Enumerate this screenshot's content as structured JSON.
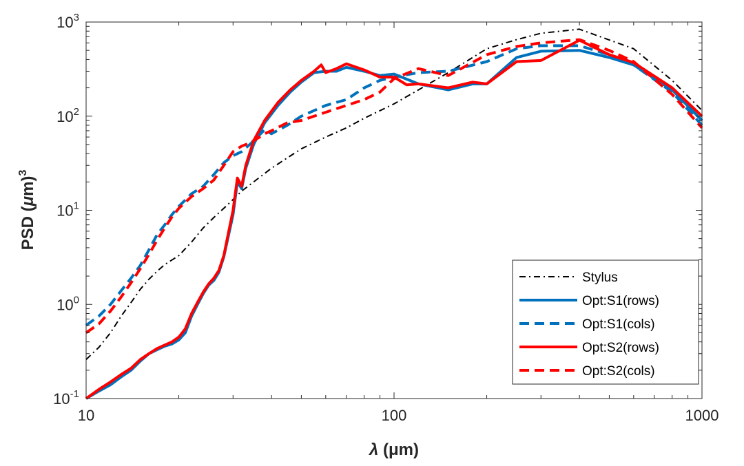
{
  "chart_data": {
    "type": "line",
    "xscale": "log",
    "yscale": "log",
    "xlim": [
      10,
      1000
    ],
    "ylim": [
      0.1,
      1000
    ],
    "xlabel": "λ (μm)",
    "xlabel_symbol": "λ",
    "xlabel_unit": " (μm)",
    "ylabel": "PSD (μm)³",
    "ylabel_text": "PSD (",
    "ylabel_symbol": "μ",
    "ylabel_unit": "m)",
    "ylabel_sup": "3",
    "xticks": [
      {
        "value": 10,
        "label": "10"
      },
      {
        "value": 100,
        "label": "100"
      },
      {
        "value": 1000,
        "label": "1000"
      }
    ],
    "yticks": [
      {
        "value": 0.1,
        "base": "10",
        "exp": "-1"
      },
      {
        "value": 1,
        "base": "10",
        "exp": "0"
      },
      {
        "value": 10,
        "base": "10",
        "exp": "1"
      },
      {
        "value": 100,
        "base": "10",
        "exp": "2"
      },
      {
        "value": 1000,
        "base": "10",
        "exp": "3"
      }
    ],
    "legend_position": "bottom-right",
    "series": [
      {
        "name": "Stylus",
        "color": "#000000",
        "style": "dashdot",
        "points": [
          [
            10,
            0.26
          ],
          [
            11,
            0.35
          ],
          [
            12,
            0.5
          ],
          [
            13,
            0.75
          ],
          [
            14,
            1.05
          ],
          [
            15,
            1.45
          ],
          [
            16,
            1.85
          ],
          [
            17,
            2.25
          ],
          [
            18,
            2.65
          ],
          [
            20,
            3.3
          ],
          [
            22,
            4.6
          ],
          [
            24,
            6.5
          ],
          [
            26,
            8.4
          ],
          [
            28,
            10.5
          ],
          [
            30,
            13
          ],
          [
            32,
            16
          ],
          [
            35,
            20
          ],
          [
            40,
            28
          ],
          [
            45,
            36
          ],
          [
            50,
            45
          ],
          [
            60,
            60
          ],
          [
            70,
            75
          ],
          [
            80,
            95
          ],
          [
            100,
            135
          ],
          [
            120,
            190
          ],
          [
            150,
            290
          ],
          [
            200,
            520
          ],
          [
            250,
            650
          ],
          [
            300,
            760
          ],
          [
            400,
            840
          ],
          [
            600,
            520
          ],
          [
            800,
            240
          ],
          [
            1000,
            115
          ]
        ]
      },
      {
        "name": "Opt:S1(rows)",
        "color": "#0072BD",
        "style": "solid",
        "points": [
          [
            10,
            0.1
          ],
          [
            11,
            0.12
          ],
          [
            12,
            0.14
          ],
          [
            13,
            0.17
          ],
          [
            14,
            0.2
          ],
          [
            15,
            0.25
          ],
          [
            16,
            0.3
          ],
          [
            17,
            0.33
          ],
          [
            18,
            0.36
          ],
          [
            19,
            0.38
          ],
          [
            20,
            0.42
          ],
          [
            21,
            0.5
          ],
          [
            22,
            0.75
          ],
          [
            23,
            1.0
          ],
          [
            24,
            1.3
          ],
          [
            25,
            1.6
          ],
          [
            26,
            1.8
          ],
          [
            27,
            2.2
          ],
          [
            28,
            3.2
          ],
          [
            30,
            9
          ],
          [
            31,
            20
          ],
          [
            32,
            17
          ],
          [
            33,
            28
          ],
          [
            35,
            50
          ],
          [
            38,
            85
          ],
          [
            42,
            130
          ],
          [
            46,
            180
          ],
          [
            50,
            230
          ],
          [
            55,
            290
          ],
          [
            60,
            300
          ],
          [
            65,
            300
          ],
          [
            70,
            330
          ],
          [
            80,
            300
          ],
          [
            90,
            270
          ],
          [
            100,
            280
          ],
          [
            120,
            220
          ],
          [
            150,
            190
          ],
          [
            180,
            220
          ],
          [
            200,
            220
          ],
          [
            250,
            420
          ],
          [
            300,
            490
          ],
          [
            400,
            500
          ],
          [
            500,
            420
          ],
          [
            600,
            350
          ],
          [
            800,
            190
          ],
          [
            1000,
            90
          ]
        ]
      },
      {
        "name": "Opt:S1(cols)",
        "color": "#0072BD",
        "style": "dashed",
        "points": [
          [
            10,
            0.6
          ],
          [
            11,
            0.75
          ],
          [
            12,
            1.0
          ],
          [
            13,
            1.4
          ],
          [
            14,
            1.9
          ],
          [
            15,
            2.6
          ],
          [
            16,
            3.8
          ],
          [
            17,
            5.5
          ],
          [
            18,
            7.0
          ],
          [
            19,
            9.0
          ],
          [
            20,
            11
          ],
          [
            22,
            15
          ],
          [
            24,
            18
          ],
          [
            26,
            24
          ],
          [
            28,
            32
          ],
          [
            30,
            38
          ],
          [
            32,
            42
          ],
          [
            34,
            50
          ],
          [
            36,
            60
          ],
          [
            38,
            72
          ],
          [
            40,
            65
          ],
          [
            45,
            80
          ],
          [
            50,
            100
          ],
          [
            60,
            130
          ],
          [
            70,
            150
          ],
          [
            80,
            200
          ],
          [
            90,
            240
          ],
          [
            100,
            260
          ],
          [
            120,
            290
          ],
          [
            150,
            300
          ],
          [
            200,
            380
          ],
          [
            250,
            520
          ],
          [
            300,
            560
          ],
          [
            400,
            560
          ],
          [
            500,
            450
          ],
          [
            600,
            350
          ],
          [
            800,
            180
          ],
          [
            1000,
            80
          ]
        ]
      },
      {
        "name": "Opt:S2(rows)",
        "color": "#FF0000",
        "style": "solid",
        "points": [
          [
            10,
            0.1
          ],
          [
            11,
            0.125
          ],
          [
            12,
            0.15
          ],
          [
            13,
            0.18
          ],
          [
            14,
            0.21
          ],
          [
            15,
            0.26
          ],
          [
            16,
            0.3
          ],
          [
            17,
            0.34
          ],
          [
            18,
            0.37
          ],
          [
            19,
            0.4
          ],
          [
            20,
            0.45
          ],
          [
            21,
            0.55
          ],
          [
            22,
            0.8
          ],
          [
            23,
            1.05
          ],
          [
            24,
            1.35
          ],
          [
            25,
            1.65
          ],
          [
            26,
            1.9
          ],
          [
            27,
            2.3
          ],
          [
            28,
            3.3
          ],
          [
            30,
            10
          ],
          [
            31,
            22
          ],
          [
            32,
            18
          ],
          [
            33,
            30
          ],
          [
            35,
            55
          ],
          [
            38,
            90
          ],
          [
            42,
            140
          ],
          [
            46,
            190
          ],
          [
            50,
            240
          ],
          [
            55,
            300
          ],
          [
            58,
            350
          ],
          [
            60,
            290
          ],
          [
            65,
            320
          ],
          [
            70,
            360
          ],
          [
            80,
            310
          ],
          [
            90,
            260
          ],
          [
            100,
            260
          ],
          [
            110,
            215
          ],
          [
            120,
            220
          ],
          [
            150,
            200
          ],
          [
            180,
            230
          ],
          [
            200,
            220
          ],
          [
            250,
            380
          ],
          [
            300,
            390
          ],
          [
            400,
            640
          ],
          [
            500,
            450
          ],
          [
            600,
            370
          ],
          [
            800,
            200
          ],
          [
            1000,
            100
          ]
        ]
      },
      {
        "name": "Opt:S2(cols)",
        "color": "#FF0000",
        "style": "dashed",
        "points": [
          [
            10,
            0.5
          ],
          [
            11,
            0.62
          ],
          [
            12,
            0.85
          ],
          [
            13,
            1.2
          ],
          [
            14,
            1.7
          ],
          [
            15,
            2.4
          ],
          [
            16,
            3.4
          ],
          [
            17,
            4.8
          ],
          [
            18,
            6.5
          ],
          [
            19,
            8.5
          ],
          [
            20,
            10.5
          ],
          [
            22,
            14
          ],
          [
            24,
            17
          ],
          [
            26,
            21
          ],
          [
            28,
            30
          ],
          [
            30,
            42
          ],
          [
            32,
            48
          ],
          [
            34,
            52
          ],
          [
            36,
            58
          ],
          [
            38,
            65
          ],
          [
            40,
            70
          ],
          [
            45,
            85
          ],
          [
            50,
            90
          ],
          [
            60,
            110
          ],
          [
            70,
            130
          ],
          [
            80,
            150
          ],
          [
            90,
            180
          ],
          [
            100,
            250
          ],
          [
            120,
            320
          ],
          [
            150,
            270
          ],
          [
            200,
            450
          ],
          [
            250,
            550
          ],
          [
            300,
            600
          ],
          [
            400,
            650
          ],
          [
            500,
            500
          ],
          [
            600,
            380
          ],
          [
            800,
            170
          ],
          [
            1000,
            75
          ]
        ]
      }
    ]
  }
}
